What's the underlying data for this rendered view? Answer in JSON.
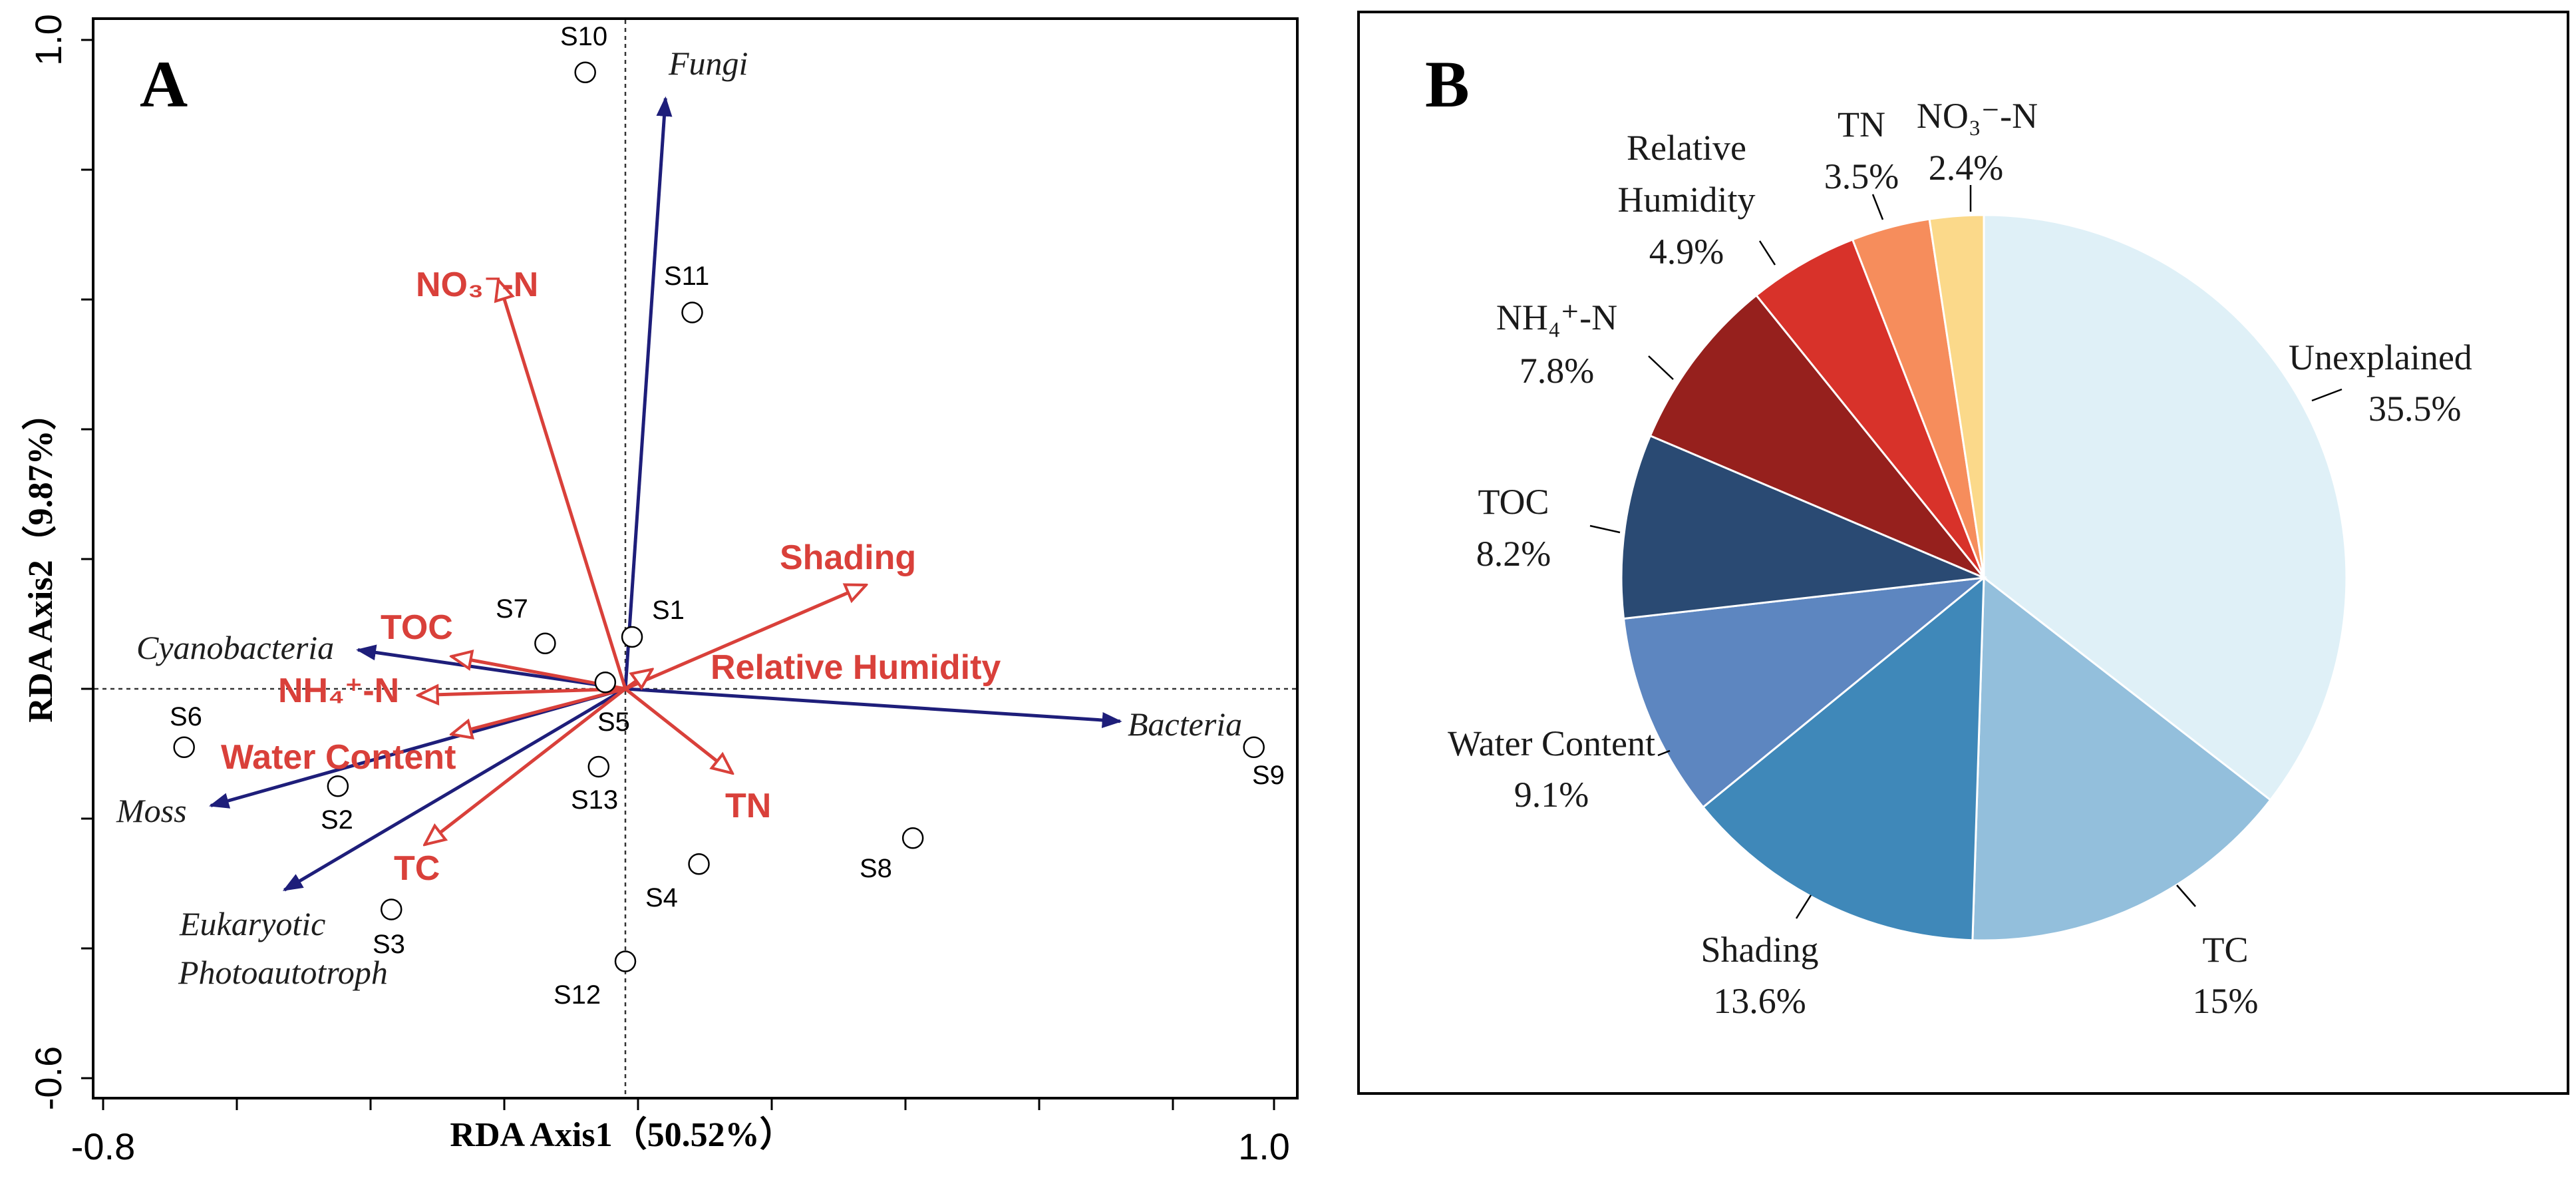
{
  "chart_data": [
    {
      "type": "scatter",
      "panel_label": "A",
      "title": "",
      "xlabel": "RDA Axis1（50.52%）",
      "ylabel": "RDA Axis2（9.87%）",
      "xlim": [
        -0.8,
        1.0
      ],
      "ylim": [
        -0.6,
        1.0
      ],
      "xtick_labels": [
        "-0.8",
        "1.0"
      ],
      "ytick_labels": [
        "-0.6",
        "1.0"
      ],
      "grid": false,
      "reference_lines": {
        "x": 0,
        "y": 0
      },
      "samples": [
        {
          "label": "S1",
          "x": 0.01,
          "y": 0.08
        },
        {
          "label": "S2",
          "x": -0.43,
          "y": -0.15
        },
        {
          "label": "S3",
          "x": -0.35,
          "y": -0.34
        },
        {
          "label": "S4",
          "x": 0.11,
          "y": -0.27
        },
        {
          "label": "S5",
          "x": -0.03,
          "y": 0.01
        },
        {
          "label": "S6",
          "x": -0.66,
          "y": -0.09
        },
        {
          "label": "S7",
          "x": -0.12,
          "y": 0.07
        },
        {
          "label": "S8",
          "x": 0.43,
          "y": -0.23
        },
        {
          "label": "S9",
          "x": 0.94,
          "y": -0.09
        },
        {
          "label": "S10",
          "x": -0.06,
          "y": 0.95
        },
        {
          "label": "S11",
          "x": 0.1,
          "y": 0.58
        },
        {
          "label": "S12",
          "x": 0.0,
          "y": -0.42
        },
        {
          "label": "S13",
          "x": -0.04,
          "y": -0.12
        }
      ],
      "species_arrows": [
        {
          "label": "Fungi",
          "x": 0.06,
          "y": 0.91
        },
        {
          "label": "Cyanobacteria",
          "x": -0.4,
          "y": 0.06
        },
        {
          "label": "Bacteria",
          "x": 0.74,
          "y": -0.05
        },
        {
          "label": "Moss",
          "x": -0.62,
          "y": -0.18
        },
        {
          "label": "Eukaryotic",
          "label2": "Photoautotroph",
          "x": -0.51,
          "y": -0.31
        }
      ],
      "environment_arrows": [
        {
          "label": "NO₃⁻-N",
          "x": -0.19,
          "y": 0.63
        },
        {
          "label": "Shading",
          "x": 0.36,
          "y": 0.16
        },
        {
          "label": "TOC",
          "x": -0.26,
          "y": 0.05
        },
        {
          "label": "NH₄⁺-N",
          "x": -0.31,
          "y": -0.01
        },
        {
          "label": "Relative Humidity",
          "x": 0.04,
          "y": 0.03
        },
        {
          "label": "Water Content",
          "x": -0.26,
          "y": -0.07
        },
        {
          "label": "TC",
          "x": -0.3,
          "y": -0.24
        },
        {
          "label": "TN",
          "x": 0.16,
          "y": -0.13
        }
      ],
      "colors": {
        "species": "#1e1e7a",
        "environment": "#d9403a"
      }
    },
    {
      "type": "pie",
      "panel_label": "B",
      "title": "",
      "start_angle": "12 o'clock",
      "direction": "clockwise",
      "slices": [
        {
          "name": "Unexplained",
          "value": 35.5,
          "label": "35.5%",
          "color": "#dff0f7"
        },
        {
          "name": "TC",
          "value": 15,
          "label": "15%",
          "color": "#93bfdc"
        },
        {
          "name": "Shading",
          "value": 13.6,
          "label": "13.6%",
          "color": "#3f88b9"
        },
        {
          "name": "Water Content",
          "value": 9.1,
          "label": "9.1%",
          "color": "#5d86c0"
        },
        {
          "name": "TOC",
          "value": 8.2,
          "label": "8.2%",
          "color": "#2a4a73"
        },
        {
          "name": "NH₄⁺-N",
          "value": 7.8,
          "label": "7.8%",
          "color": "#96201d"
        },
        {
          "name": "Relative Humidity",
          "value": 4.9,
          "label": "4.9%",
          "color": "#d8322a"
        },
        {
          "name": "TN",
          "value": 3.5,
          "label": "3.5%",
          "color": "#f68d5c"
        },
        {
          "name": "NO₃⁻-N",
          "value": 2.4,
          "label": "2.4%",
          "color": "#fbd98a"
        }
      ]
    }
  ]
}
